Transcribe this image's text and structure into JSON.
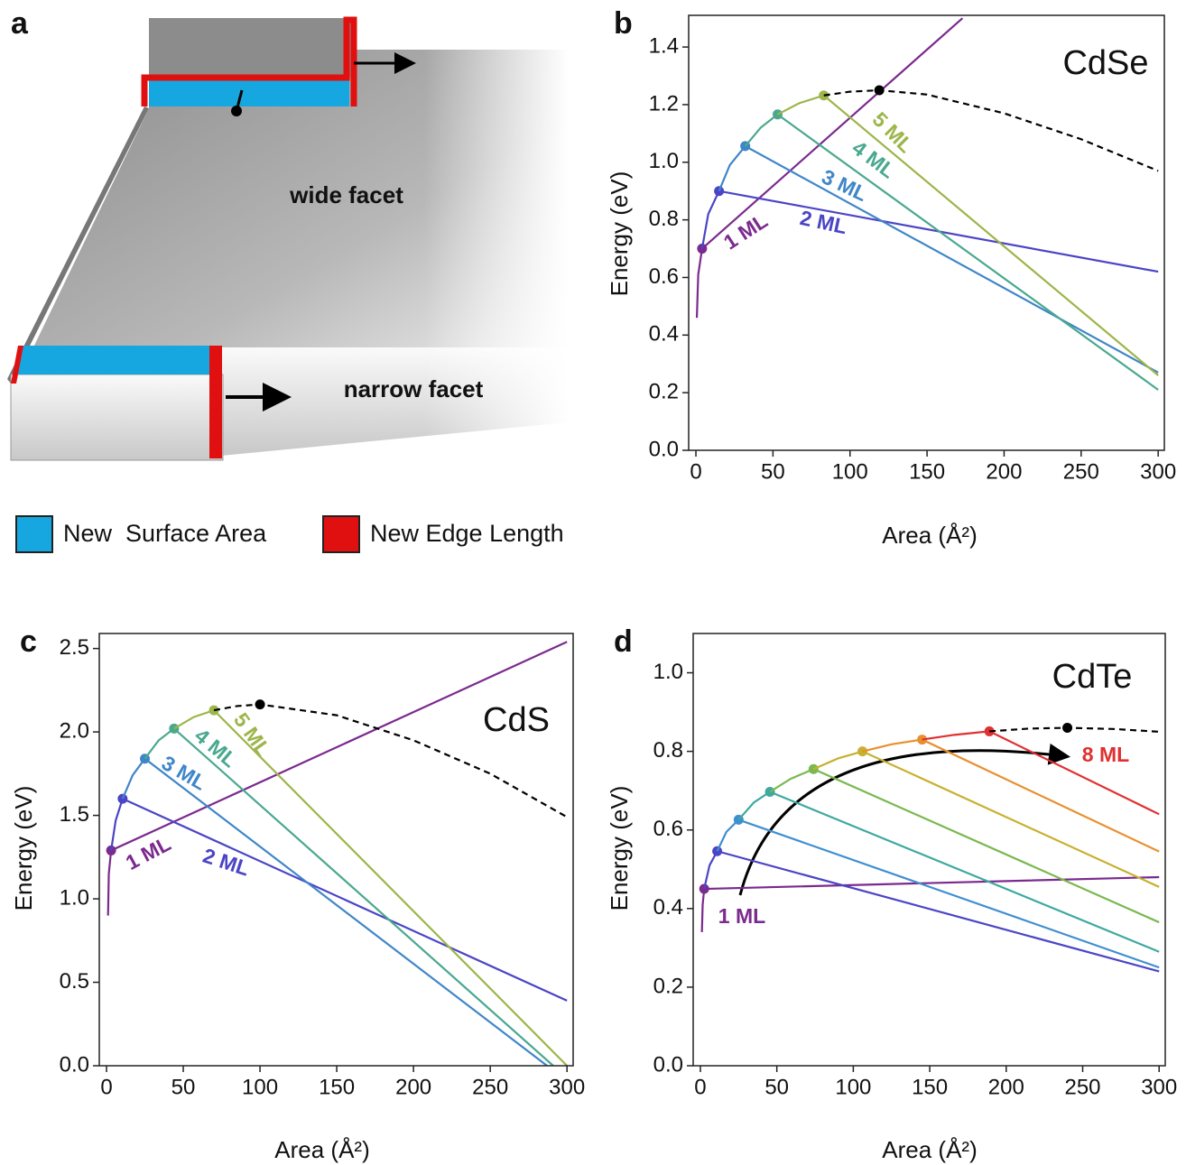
{
  "illustration": {
    "label": "a",
    "wide_facet": "wide facet",
    "narrow_facet": "narrow facet",
    "legend": [
      "New  Surface Area",
      "New Edge Length"
    ]
  },
  "chart_data": [
    {
      "type": "line",
      "label": "b",
      "annotation": "CdSe",
      "xlabel": "Area (Å²)",
      "ylabel": "Energy (eV)",
      "xlim": [
        -4.7,
        304
      ],
      "ylim": [
        0,
        1.51
      ],
      "xticks": [
        0,
        50,
        100,
        150,
        200,
        250,
        300
      ],
      "yticks": [
        {
          "value": 0,
          "label": "0.0"
        },
        0.2,
        0.4,
        0.6,
        0.8,
        {
          "value": 1,
          "label": "1.0"
        },
        1.2,
        1.4
      ],
      "series": [
        {
          "name": "1 ML",
          "color": "#7b2a8e",
          "x": [
            0.6,
            1.5,
            4,
            173
          ],
          "values": [
            0.46,
            0.61,
            0.7,
            1.5
          ],
          "marker_x": 4,
          "marker_y": 0.7
        },
        {
          "name": "2 ML",
          "color": "#4b45c6",
          "x": [
            4,
            8,
            15,
            300
          ],
          "values": [
            0.7,
            0.82,
            0.9,
            0.62
          ],
          "marker_x": 15,
          "marker_y": 0.9
        },
        {
          "name": "3 ML",
          "color": "#3f86c8",
          "x": [
            15,
            22,
            32,
            300
          ],
          "values": [
            0.9,
            0.99,
            1.056,
            0.27
          ],
          "marker_x": 32,
          "marker_y": 1.056
        },
        {
          "name": "4 ML",
          "color": "#4aa88f",
          "x": [
            32,
            42,
            53,
            300
          ],
          "values": [
            1.056,
            1.12,
            1.166,
            0.21
          ],
          "marker_x": 53,
          "marker_y": 1.166
        },
        {
          "name": "5 ML",
          "color": "#9db54a",
          "x": [
            53,
            67,
            83,
            300
          ],
          "values": [
            1.166,
            1.205,
            1.232,
            0.26
          ],
          "marker_x": 83,
          "marker_y": 1.232
        },
        {
          "color": "#000000",
          "dashed": true,
          "x": [
            83,
            100,
            119,
            150,
            200,
            250,
            300
          ],
          "values": [
            1.232,
            1.245,
            1.25,
            1.235,
            1.17,
            1.08,
            0.97
          ],
          "marker_x": 119,
          "marker_y": 1.25
        }
      ]
    },
    {
      "type": "line",
      "label": "c",
      "annotation": "CdS",
      "xlabel": "Area (Å²)",
      "ylabel": "Energy (eV)",
      "xlim": [
        -4.7,
        304
      ],
      "ylim": [
        0,
        2.59
      ],
      "xticks": [
        0,
        50,
        100,
        150,
        200,
        250,
        300
      ],
      "yticks": [
        {
          "value": 0,
          "label": "0.0"
        },
        0.5,
        {
          "value": 1,
          "label": "1.0"
        },
        1.5,
        {
          "value": 2,
          "label": "2.0"
        },
        2.5
      ],
      "series": [
        {
          "name": "1 ML",
          "color": "#7b2a8e",
          "x": [
            1,
            1.5,
            3,
            300
          ],
          "values": [
            0.9,
            1.15,
            1.29,
            2.54
          ],
          "marker_x": 3,
          "marker_y": 1.29
        },
        {
          "name": "2 ML",
          "color": "#4b45c6",
          "x": [
            3,
            6,
            10.5,
            300
          ],
          "values": [
            1.29,
            1.47,
            1.6,
            0.39
          ],
          "marker_x": 10.5,
          "marker_y": 1.6
        },
        {
          "name": "3 ML",
          "color": "#3f86c8",
          "x": [
            10.5,
            17,
            25,
            287
          ],
          "values": [
            1.6,
            1.74,
            1.84,
            0
          ],
          "marker_x": 25,
          "marker_y": 1.84
        },
        {
          "name": "4 ML",
          "color": "#4aa88f",
          "x": [
            25,
            34,
            44,
            291
          ],
          "values": [
            1.84,
            1.95,
            2.02,
            0
          ],
          "marker_x": 44,
          "marker_y": 2.02
        },
        {
          "name": "5 ML",
          "color": "#9db54a",
          "x": [
            44,
            57,
            70,
            300
          ],
          "values": [
            2.02,
            2.09,
            2.13,
            0
          ],
          "marker_x": 70,
          "marker_y": 2.13
        },
        {
          "color": "#000000",
          "dashed": true,
          "x": [
            70,
            85,
            100,
            150,
            200,
            250,
            300
          ],
          "values": [
            2.13,
            2.155,
            2.165,
            2.1,
            1.95,
            1.75,
            1.49
          ],
          "marker_x": 100,
          "marker_y": 2.165
        }
      ]
    },
    {
      "type": "line",
      "label": "d",
      "annotation": "CdTe",
      "xlabel": "Area (Å²)",
      "ylabel": "Energy (eV)",
      "xlim": [
        -4.7,
        304
      ],
      "ylim": [
        0,
        1.1
      ],
      "xticks": [
        0,
        50,
        100,
        150,
        200,
        250,
        300
      ],
      "yticks": [
        {
          "value": 0,
          "label": "0.0"
        },
        0.2,
        0.4,
        0.6,
        0.8,
        {
          "value": 1,
          "label": "1.0"
        }
      ],
      "series": [
        {
          "name": "1 ML",
          "color": "#7b2a8e",
          "x": [
            1,
            1.5,
            2.5,
            300
          ],
          "values": [
            0.34,
            0.41,
            0.45,
            0.48
          ],
          "marker_x": 2.5,
          "marker_y": 0.45
        },
        {
          "color": "#4b45c6",
          "x": [
            2.5,
            6,
            11,
            300
          ],
          "values": [
            0.45,
            0.51,
            0.546,
            0.24
          ],
          "marker_x": 11,
          "marker_y": 0.546
        },
        {
          "color": "#3f8fd0",
          "x": [
            11,
            17,
            25,
            300
          ],
          "values": [
            0.546,
            0.595,
            0.626,
            0.25
          ],
          "marker_x": 25,
          "marker_y": 0.626
        },
        {
          "color": "#3fa9a0",
          "x": [
            25,
            35,
            45.5,
            300
          ],
          "values": [
            0.626,
            0.67,
            0.697,
            0.29
          ],
          "marker_x": 45.5,
          "marker_y": 0.697
        },
        {
          "color": "#7ab850",
          "x": [
            45.5,
            59,
            74,
            300
          ],
          "values": [
            0.697,
            0.73,
            0.755,
            0.365
          ],
          "marker_x": 74,
          "marker_y": 0.755
        },
        {
          "color": "#c8b030",
          "x": [
            74,
            90,
            106,
            300
          ],
          "values": [
            0.755,
            0.782,
            0.8,
            0.455
          ],
          "marker_x": 106,
          "marker_y": 0.8
        },
        {
          "color": "#e89030",
          "x": [
            106,
            125,
            145,
            300
          ],
          "values": [
            0.8,
            0.818,
            0.83,
            0.545
          ],
          "marker_x": 145,
          "marker_y": 0.83
        },
        {
          "name": "8 ML",
          "color": "#e03030",
          "x": [
            145,
            166,
            189,
            300
          ],
          "values": [
            0.83,
            0.842,
            0.851,
            0.64
          ],
          "marker_x": 189,
          "marker_y": 0.851
        },
        {
          "color": "#000000",
          "dashed": true,
          "x": [
            189,
            215,
            240,
            270,
            300
          ],
          "values": [
            0.851,
            0.858,
            0.86,
            0.857,
            0.85
          ],
          "marker_x": 240,
          "marker_y": 0.86
        }
      ]
    }
  ]
}
